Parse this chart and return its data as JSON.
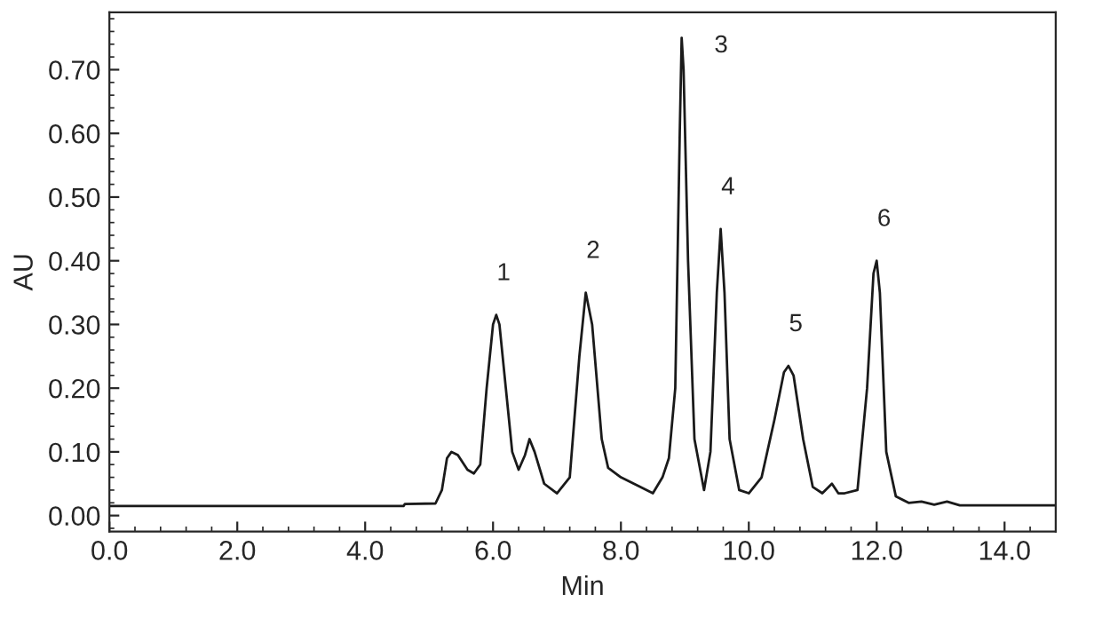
{
  "chart_data": {
    "type": "line",
    "xlabel": "Min",
    "ylabel": "AU",
    "x": [
      0.0,
      4.6,
      4.62,
      5.1,
      5.2,
      5.28,
      5.35,
      5.45,
      5.6,
      5.7,
      5.8,
      5.9,
      6.0,
      6.05,
      6.1,
      6.2,
      6.3,
      6.4,
      6.5,
      6.57,
      6.65,
      6.8,
      7.0,
      7.2,
      7.35,
      7.45,
      7.55,
      7.7,
      7.8,
      8.0,
      8.3,
      8.5,
      8.65,
      8.75,
      8.85,
      8.92,
      8.95,
      8.98,
      9.05,
      9.15,
      9.3,
      9.4,
      9.5,
      9.56,
      9.62,
      9.7,
      9.85,
      10.0,
      10.2,
      10.4,
      10.55,
      10.62,
      10.7,
      10.85,
      11.0,
      11.15,
      11.3,
      11.4,
      11.5,
      11.7,
      11.85,
      11.95,
      12.0,
      12.05,
      12.15,
      12.3,
      12.5,
      12.7,
      12.9,
      13.1,
      13.3,
      14.8
    ],
    "series": [
      {
        "color": "#1a1a1a",
        "values": [
          0.015,
          0.015,
          0.018,
          0.019,
          0.04,
          0.09,
          0.1,
          0.095,
          0.072,
          0.066,
          0.08,
          0.2,
          0.3,
          0.315,
          0.3,
          0.2,
          0.1,
          0.072,
          0.095,
          0.12,
          0.1,
          0.05,
          0.035,
          0.06,
          0.25,
          0.35,
          0.3,
          0.12,
          0.075,
          0.06,
          0.045,
          0.035,
          0.06,
          0.09,
          0.2,
          0.6,
          0.75,
          0.7,
          0.4,
          0.12,
          0.04,
          0.1,
          0.35,
          0.45,
          0.35,
          0.12,
          0.04,
          0.035,
          0.06,
          0.15,
          0.225,
          0.235,
          0.22,
          0.12,
          0.045,
          0.035,
          0.05,
          0.035,
          0.035,
          0.04,
          0.2,
          0.38,
          0.4,
          0.35,
          0.1,
          0.03,
          0.02,
          0.022,
          0.017,
          0.022,
          0.016,
          0.016
        ]
      }
    ],
    "xlim": [
      0.0,
      14.8
    ],
    "ylim": [
      -0.025,
      0.79
    ],
    "xticks": [
      {
        "value": 0,
        "label": "0.0"
      },
      {
        "value": 2,
        "label": "2.0"
      },
      {
        "value": 4,
        "label": "4.0"
      },
      {
        "value": 6,
        "label": "6.0"
      },
      {
        "value": 8,
        "label": "8.0"
      },
      {
        "value": 10,
        "label": "10.0"
      },
      {
        "value": 12,
        "label": "12.0"
      },
      {
        "value": 14,
        "label": "14.0"
      }
    ],
    "yticks": [
      {
        "value": 0,
        "label": "0.00"
      },
      {
        "value": 0.1,
        "label": "0.10"
      },
      {
        "value": 0.2,
        "label": "0.20"
      },
      {
        "value": 0.3,
        "label": "0.30"
      },
      {
        "value": 0.4,
        "label": "0.40"
      },
      {
        "value": 0.5,
        "label": "0.50"
      },
      {
        "value": 0.6,
        "label": "0.60"
      },
      {
        "value": 0.7,
        "label": "0.70"
      }
    ],
    "annotations": [
      {
        "text": "1",
        "x": 6.05,
        "y": 0.315
      },
      {
        "text": "2",
        "x": 7.45,
        "y": 0.35
      },
      {
        "text": "3",
        "x": 8.95,
        "y": 0.75
      },
      {
        "text": "4",
        "x": 9.56,
        "y": 0.45
      },
      {
        "text": "5",
        "x": 10.62,
        "y": 0.235
      },
      {
        "text": "6",
        "x": 12.0,
        "y": 0.4
      }
    ],
    "marker": "none",
    "line_style": "solid"
  }
}
